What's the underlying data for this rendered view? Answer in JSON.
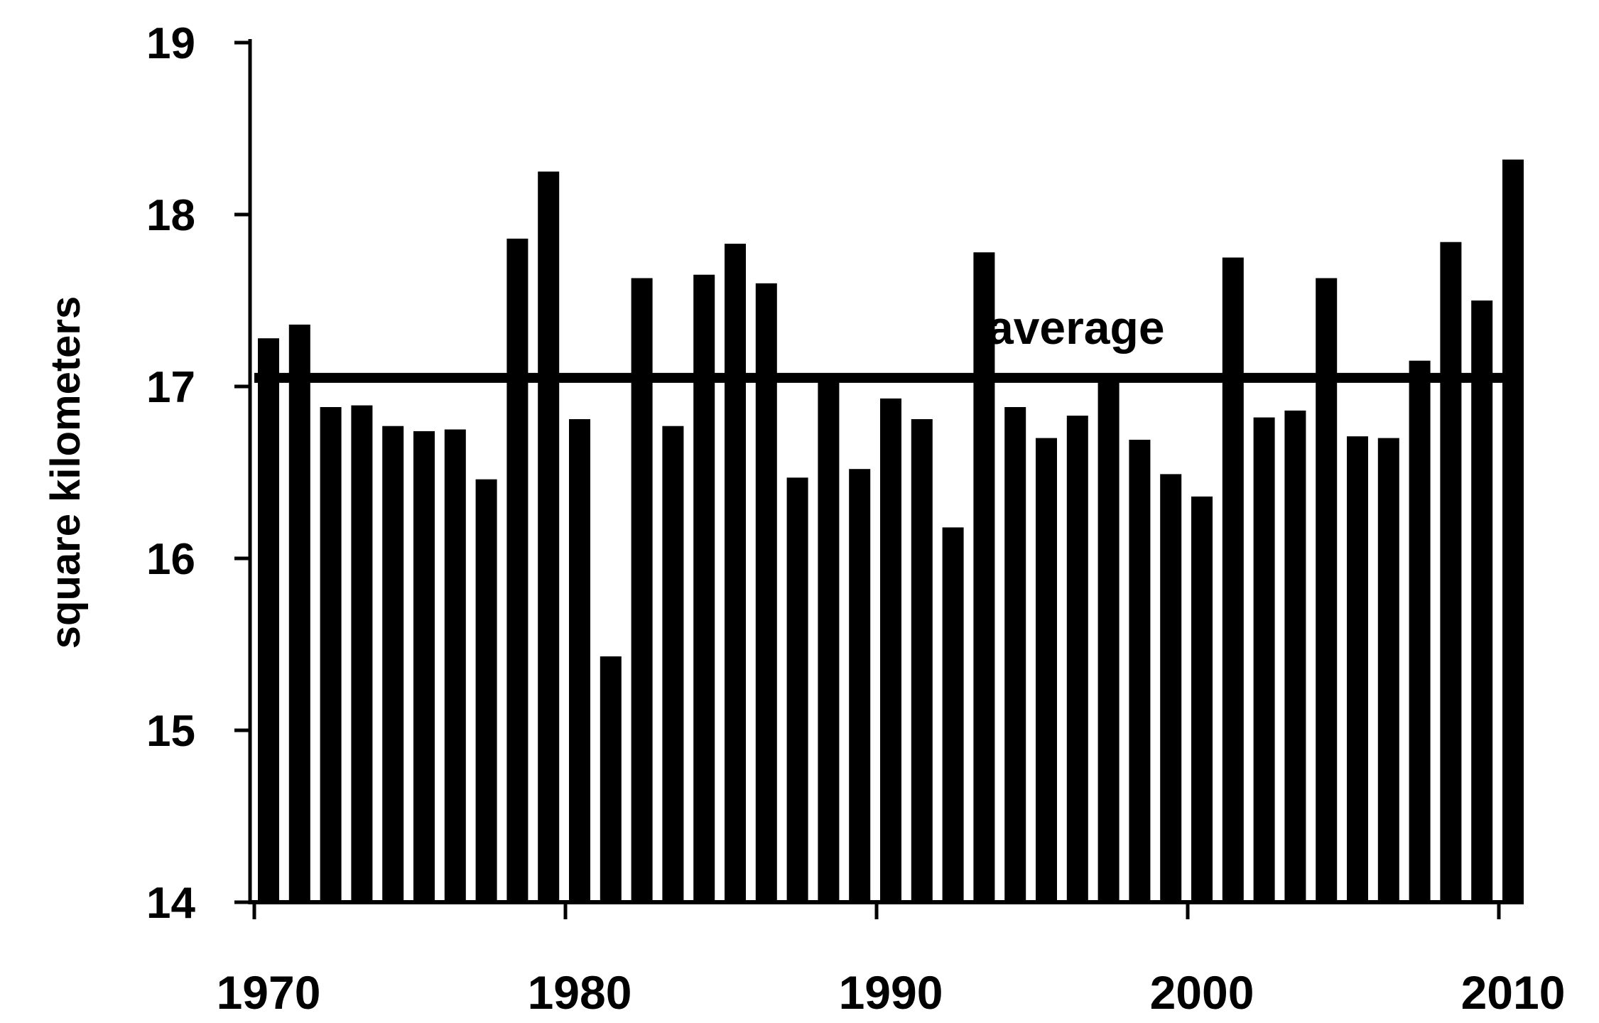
{
  "chart_data": {
    "type": "bar",
    "ylabel": "square kilometers",
    "ylim": [
      14,
      19
    ],
    "yticks": [
      "14",
      "15",
      "16",
      "17",
      "18",
      "19"
    ],
    "xticks": [
      "1970",
      "1980",
      "1990",
      "2000",
      "2010"
    ],
    "x": [
      1970,
      1971,
      1972,
      1973,
      1974,
      1975,
      1976,
      1977,
      1978,
      1979,
      1980,
      1981,
      1982,
      1983,
      1984,
      1985,
      1986,
      1987,
      1988,
      1989,
      1990,
      1991,
      1992,
      1993,
      1994,
      1995,
      1996,
      1997,
      1998,
      1999,
      2000,
      2001,
      2002,
      2003,
      2004,
      2005,
      2006,
      2007,
      2008,
      2009,
      2010
    ],
    "values": [
      17.28,
      17.36,
      16.88,
      16.89,
      16.77,
      16.74,
      16.75,
      16.46,
      17.86,
      18.25,
      16.81,
      15.43,
      17.63,
      16.77,
      17.65,
      17.83,
      17.6,
      16.47,
      17.05,
      16.52,
      16.93,
      16.81,
      16.18,
      17.78,
      16.88,
      16.7,
      16.83,
      17.05,
      16.69,
      16.49,
      16.36,
      17.75,
      16.82,
      16.86,
      17.63,
      16.71,
      16.7,
      17.15,
      17.84,
      17.5,
      18.32
    ],
    "average": 17.05,
    "average_label": "average",
    "grid": false,
    "legend": "none"
  }
}
